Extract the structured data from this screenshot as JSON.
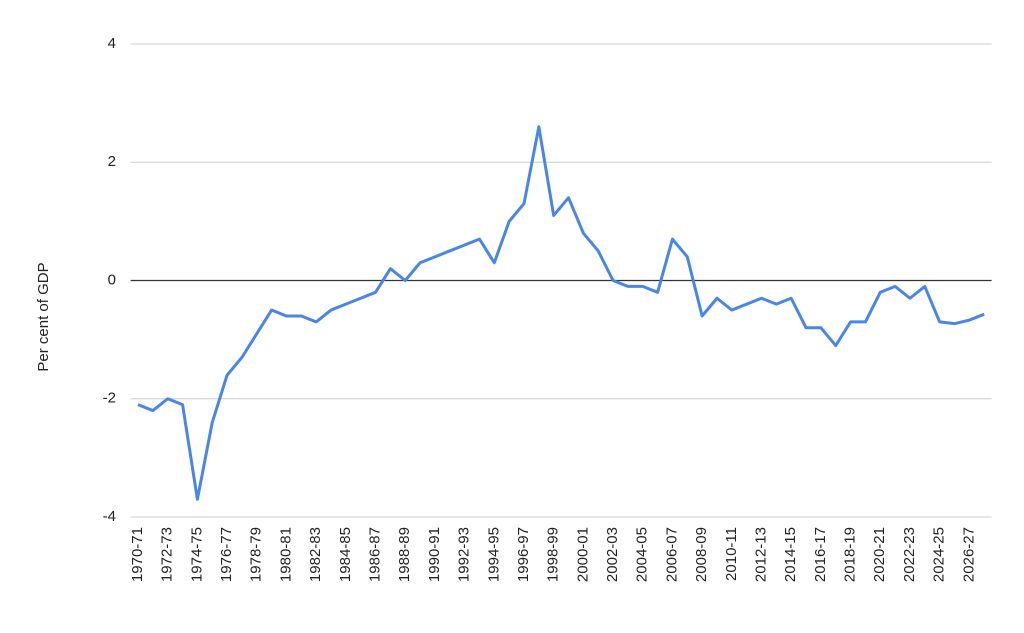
{
  "chart_data": {
    "type": "line",
    "y_label": "Per cent of GDP",
    "categories": [
      "1970-71",
      null,
      "1972-73",
      null,
      "1974-75",
      null,
      "1976-77",
      null,
      "1978-79",
      null,
      "1980-81",
      null,
      "1982-83",
      null,
      "1984-85",
      null,
      "1986-87",
      null,
      "1988-89",
      null,
      "1990-91",
      null,
      "1992-93",
      null,
      "1994-95",
      null,
      "1996-97",
      null,
      "1998-99",
      null,
      "2000-01",
      null,
      "2002-03",
      null,
      "2004-05",
      null,
      "2006-07",
      null,
      "2008-09",
      null,
      "2010-11",
      null,
      "2012-13",
      null,
      "2014-15",
      null,
      "2016-17",
      null,
      "2018-19",
      null,
      "2020-21",
      null,
      "2022-23",
      null,
      "2024-25",
      null,
      "2026-27",
      null
    ],
    "values": [
      -2.1,
      -2.2,
      -2.0,
      -2.1,
      -3.7,
      -2.4,
      -1.6,
      -1.3,
      -0.9,
      -0.5,
      -0.6,
      -0.6,
      -0.7,
      -0.5,
      -0.4,
      -0.3,
      -0.2,
      0.2,
      0.0,
      0.3,
      0.4,
      0.5,
      0.6,
      0.7,
      0.3,
      1.0,
      1.3,
      2.6,
      1.1,
      1.4,
      0.8,
      0.5,
      0.0,
      -0.1,
      -0.1,
      -0.2,
      0.7,
      0.4,
      -0.6,
      -0.3,
      -0.5,
      -0.4,
      -0.3,
      -0.4,
      -0.3,
      -0.8,
      -0.8,
      -1.1,
      -0.7,
      -0.7,
      -0.2,
      -0.1,
      -0.3,
      -0.1,
      -0.7,
      -0.73,
      -0.67,
      -0.57
    ],
    "color": "#4a86e8",
    "ylim": [
      -4,
      4
    ],
    "yticks": [
      -4,
      -2,
      0,
      2,
      4
    ],
    "grid": true
  }
}
